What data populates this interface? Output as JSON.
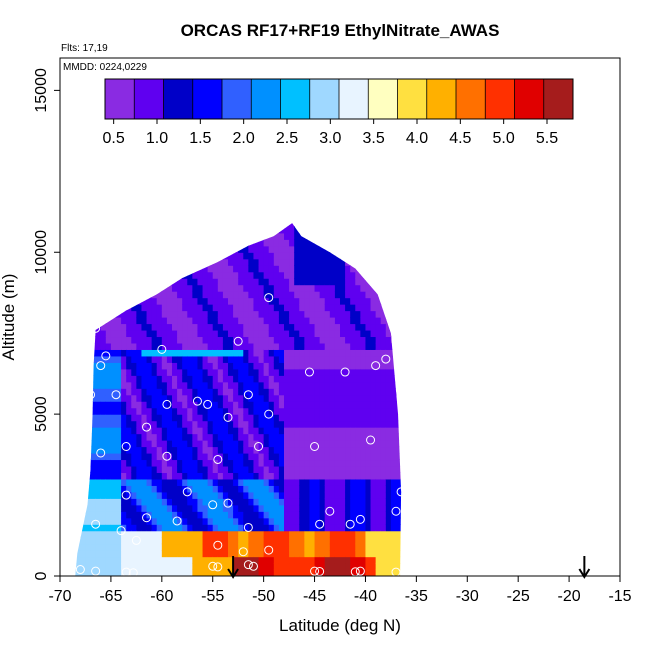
{
  "chart_data": {
    "type": "heatmap",
    "title": "ORCAS RF17+RF19 EthylNitrate_AWAS",
    "annotations": [
      "Flts: 17,19",
      "MMDD: 0224,0229"
    ],
    "xlabel": "Latitude (deg N)",
    "ylabel": "Altitude (m)",
    "xlim": [
      -70,
      -15
    ],
    "ylim": [
      0,
      16000
    ],
    "x_ticks": [
      -70,
      -65,
      -60,
      -55,
      -50,
      -45,
      -40,
      -35,
      -30,
      -25,
      -20,
      -15
    ],
    "y_ticks": [
      0,
      5000,
      10000,
      15000
    ],
    "grid": false,
    "colorbar": {
      "placement": "top-inset",
      "range": [
        0.4,
        5.8
      ],
      "ticks": [
        0.5,
        1.0,
        1.5,
        2.0,
        2.5,
        3.0,
        3.5,
        4.0,
        4.5,
        5.0,
        5.5
      ],
      "tick_labels": [
        "0.5",
        "1.0",
        "1.5",
        "2.0",
        "2.5",
        "3.0",
        "3.5",
        "4.0",
        "4.5",
        "5.0",
        "5.5"
      ],
      "colors": [
        "#8a2be2",
        "#5f00f0",
        "#0000c8",
        "#0000ff",
        "#3060ff",
        "#0090ff",
        "#00c0ff",
        "#9fd8ff",
        "#e8f4ff",
        "#ffffc0",
        "#ffe040",
        "#ffb000",
        "#ff7000",
        "#ff3000",
        "#e00000",
        "#a51c1c"
      ]
    },
    "field_outline": [
      [
        -68.5,
        0
      ],
      [
        -68.3,
        700
      ],
      [
        -67.3,
        2200
      ],
      [
        -67.0,
        3300
      ],
      [
        -66.8,
        5000
      ],
      [
        -66.7,
        6500
      ],
      [
        -66.5,
        7600
      ],
      [
        -63.5,
        8200
      ],
      [
        -60.5,
        8700
      ],
      [
        -58.0,
        9200
      ],
      [
        -54.5,
        9700
      ],
      [
        -51.5,
        10200
      ],
      [
        -49.0,
        10500
      ],
      [
        -47.2,
        10900
      ],
      [
        -46.3,
        10500
      ],
      [
        -43.5,
        10000
      ],
      [
        -41.0,
        9500
      ],
      [
        -38.8,
        8700
      ],
      [
        -37.5,
        7500
      ],
      [
        -36.8,
        5000
      ],
      [
        -36.5,
        2600
      ],
      [
        -36.6,
        0
      ]
    ],
    "sample_points": [
      [
        -66.5,
        7650
      ],
      [
        -65.5,
        6800
      ],
      [
        -66.0,
        6500
      ],
      [
        -67.0,
        5600
      ],
      [
        -64.5,
        5600
      ],
      [
        -66.0,
        3800
      ],
      [
        -63.5,
        4000
      ],
      [
        -61.5,
        4600
      ],
      [
        -59.5,
        3700
      ],
      [
        -63.5,
        2500
      ],
      [
        -57.5,
        2600
      ],
      [
        -64.0,
        1400
      ],
      [
        -61.5,
        1800
      ],
      [
        -58.5,
        1700
      ],
      [
        -62.5,
        1100
      ],
      [
        -66.5,
        1600
      ],
      [
        -68.0,
        200
      ],
      [
        -66.5,
        150
      ],
      [
        -63.5,
        120
      ],
      [
        -62.8,
        100
      ],
      [
        -60.0,
        7000
      ],
      [
        -59.5,
        5300
      ],
      [
        -56.5,
        5400
      ],
      [
        -55.5,
        5300
      ],
      [
        -53.5,
        4900
      ],
      [
        -51.5,
        5600
      ],
      [
        -49.5,
        5000
      ],
      [
        -50.5,
        4000
      ],
      [
        -54.5,
        3600
      ],
      [
        -55.0,
        2200
      ],
      [
        -53.5,
        2250
      ],
      [
        -52.5,
        7250
      ],
      [
        -49.5,
        8600
      ],
      [
        -45.5,
        6300
      ],
      [
        -42.0,
        6300
      ],
      [
        -39.0,
        6500
      ],
      [
        -38.0,
        6700
      ],
      [
        -39.5,
        4200
      ],
      [
        -45.0,
        4000
      ],
      [
        -43.5,
        2000
      ],
      [
        -44.5,
        1600
      ],
      [
        -41.5,
        1600
      ],
      [
        -40.5,
        1750
      ],
      [
        -37.0,
        2000
      ],
      [
        -36.5,
        2600
      ],
      [
        -51.5,
        1500
      ],
      [
        -54.5,
        950
      ],
      [
        -52.0,
        750
      ],
      [
        -49.5,
        800
      ],
      [
        -55.0,
        300
      ],
      [
        -54.5,
        280
      ],
      [
        -51.5,
        350
      ],
      [
        -51.0,
        300
      ],
      [
        -45.0,
        150
      ],
      [
        -44.5,
        140
      ],
      [
        -41.0,
        130
      ],
      [
        -40.5,
        150
      ],
      [
        -37.0,
        120
      ]
    ],
    "flight_markers": [
      {
        "flight": "RF17",
        "lat": -53.0
      },
      {
        "flight": "RF19",
        "lat": -18.5
      }
    ]
  }
}
